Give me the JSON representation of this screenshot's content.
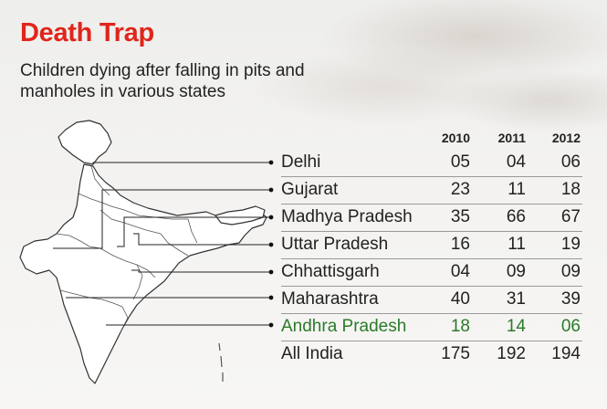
{
  "header": {
    "title": "Death Trap",
    "subtitle": "Children dying after falling in pits and manholes in various states"
  },
  "chart_data": {
    "type": "table",
    "columns": [
      "2010",
      "2011",
      "2012"
    ],
    "rows": [
      {
        "name": "Delhi",
        "values": [
          "05",
          "04",
          "06"
        ]
      },
      {
        "name": "Gujarat",
        "values": [
          "23",
          "11",
          "18"
        ]
      },
      {
        "name": "Madhya Pradesh",
        "values": [
          "35",
          "66",
          "67"
        ]
      },
      {
        "name": "Uttar Pradesh",
        "values": [
          "16",
          "11",
          "19"
        ]
      },
      {
        "name": "Chhattisgarh",
        "values": [
          "04",
          "09",
          "09"
        ]
      },
      {
        "name": "Maharashtra",
        "values": [
          "40",
          "31",
          "39"
        ]
      },
      {
        "name": "Andhra Pradesh",
        "values": [
          "18",
          "14",
          "06"
        ],
        "highlight": true
      },
      {
        "name": "All India",
        "values": [
          "175",
          "192",
          "194"
        ]
      }
    ]
  },
  "colors": {
    "title": "#e0251b",
    "highlight": "#2a7a2a",
    "text": "#222222",
    "map_fill": "#ffffff",
    "map_stroke": "#333333"
  }
}
